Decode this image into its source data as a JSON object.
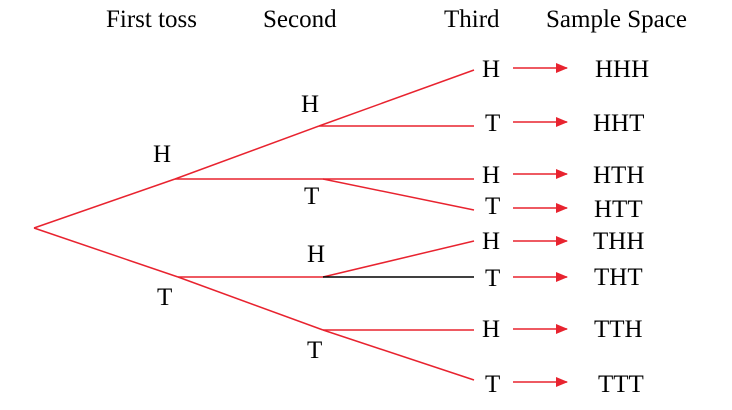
{
  "headers": {
    "first": "First toss",
    "second": "Second",
    "third": "Third",
    "sample_space": "Sample Space"
  },
  "first_toss": {
    "heads": "H",
    "tails": "T"
  },
  "second_toss": {
    "after_h": {
      "heads": "H",
      "tails": "T"
    },
    "after_t": {
      "heads": "H",
      "tails": "T"
    }
  },
  "third_toss": {
    "hh_h": "H",
    "hh_t": "T",
    "ht_h": "H",
    "ht_t": "T",
    "th_h": "H",
    "th_t": "T",
    "tt_h": "H",
    "tt_t": "T"
  },
  "sample_space": [
    "HHH",
    "HHT",
    "HTH",
    "HTT",
    "THH",
    "THT",
    "TTH",
    "TTT"
  ],
  "colors": {
    "branch": "#e8232f",
    "neutral_branch": "#000000",
    "text": "#000000"
  }
}
